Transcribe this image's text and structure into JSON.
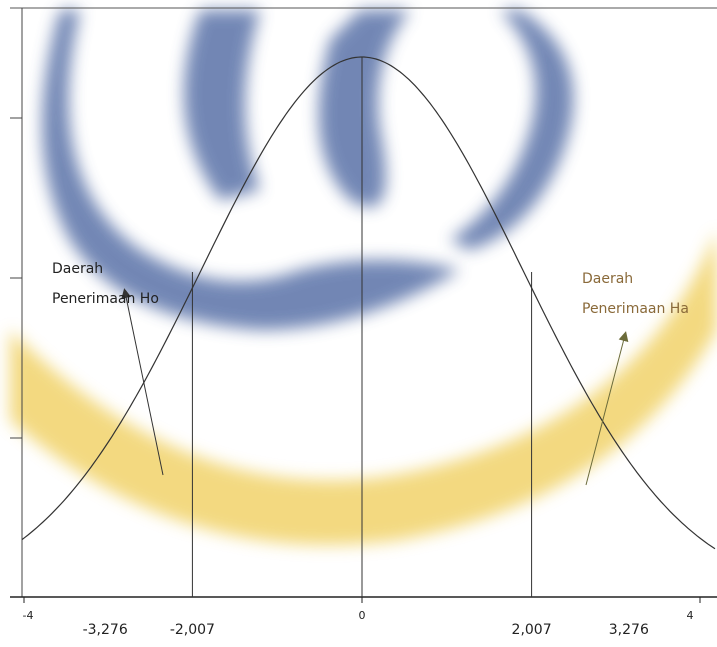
{
  "axis": {
    "ticks": [
      -4,
      0,
      4
    ]
  },
  "critical_values": [
    {
      "value": -3.276,
      "label": "-3,276"
    },
    {
      "value": -2.007,
      "label": "-2,007"
    },
    {
      "value": 2.007,
      "label": "2,007"
    },
    {
      "value": 3.276,
      "label": "3,276"
    }
  ],
  "annotations": [
    {
      "lines": [
        "Daerah",
        "Penerimaan Ho"
      ]
    },
    {
      "lines": [
        "Daerah",
        "Penerimaan Ha"
      ]
    }
  ]
}
